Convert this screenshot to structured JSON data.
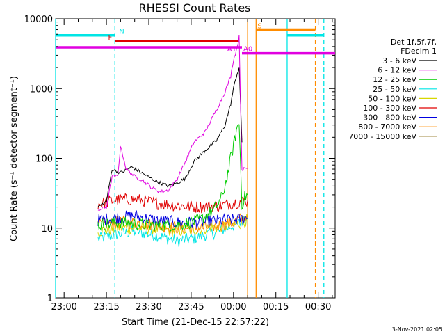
{
  "chart_data": {
    "type": "line",
    "title": "RHESSI Count Rates",
    "xlabel": "Start Time (21-Dec-15 22:57:22)",
    "ylabel": "Count Rate (s⁻¹ detector segment⁻¹)",
    "y_scale": "log",
    "ylim": [
      1,
      10000
    ],
    "xlim": [
      "22:57",
      "00:36"
    ],
    "x_tick_labels": [
      "23:00",
      "23:15",
      "23:30",
      "23:45",
      "00:00",
      "00:15",
      "00:30"
    ],
    "y_tick_labels": [
      "1",
      "10",
      "100",
      "1000",
      "10000"
    ],
    "legend_position": "right",
    "legend_header": [
      "Det 1f,5f,7f,",
      "FDecim 1"
    ],
    "timestamp": "3-Nov-2021 02:05",
    "series": [
      {
        "name": "3 - 6 keV",
        "color": "#000000",
        "x": [
          "23:12",
          "23:15",
          "23:17",
          "23:20",
          "23:24",
          "23:28",
          "23:33",
          "23:37",
          "23:40",
          "23:43",
          "23:46",
          "23:50",
          "23:54",
          "23:57",
          "23:59",
          "00:00",
          "00:01",
          "00:02",
          "00:03"
        ],
        "y": [
          20,
          24,
          70,
          62,
          75,
          60,
          46,
          40,
          44,
          52,
          90,
          130,
          180,
          300,
          600,
          1000,
          1500,
          2000,
          170
        ]
      },
      {
        "name": "6 - 12 keV",
        "color": "#e000e0",
        "x": [
          "23:12",
          "23:15",
          "23:17",
          "23:19",
          "23:20",
          "23:22",
          "23:25",
          "23:28",
          "23:31",
          "23:34",
          "23:37",
          "23:40",
          "23:43",
          "23:46",
          "23:50",
          "23:54",
          "23:57",
          "23:59",
          "00:00",
          "00:01",
          "00:02",
          "00:03",
          "00:04",
          "00:05"
        ],
        "y": [
          18,
          20,
          55,
          55,
          150,
          70,
          55,
          48,
          38,
          33,
          35,
          50,
          90,
          170,
          240,
          500,
          900,
          1500,
          2600,
          3500,
          5500,
          70,
          70,
          72
        ]
      },
      {
        "name": "12 - 25 keV",
        "color": "#00cc00",
        "x": [
          "23:12",
          "23:20",
          "23:30",
          "23:40",
          "23:48",
          "23:53",
          "23:56",
          "23:58",
          "23:59",
          "00:00",
          "00:01",
          "00:02",
          "00:03",
          "00:04",
          "00:05"
        ],
        "y": [
          11,
          12,
          11,
          11,
          13,
          18,
          28,
          60,
          100,
          150,
          250,
          320,
          22,
          28,
          30
        ]
      },
      {
        "name": "25 - 50 keV",
        "color": "#00e5e5",
        "x": [
          "23:12",
          "23:18",
          "23:25",
          "23:32",
          "23:40",
          "23:48",
          "23:55",
          "00:00",
          "00:03",
          "00:05"
        ],
        "y": [
          7,
          8,
          9,
          8,
          6.5,
          7.5,
          9,
          11,
          12,
          14
        ]
      },
      {
        "name": "50 - 100 keV",
        "color": "#d7d700",
        "x": [
          "23:12",
          "23:20",
          "23:30",
          "23:40",
          "23:50",
          "00:00",
          "00:05"
        ],
        "y": [
          9,
          10,
          10,
          9,
          10,
          11,
          13
        ]
      },
      {
        "name": "100 - 300 keV",
        "color": "#e00000",
        "x": [
          "23:12",
          "23:18",
          "23:25",
          "23:32",
          "23:40",
          "23:48",
          "23:56",
          "00:00",
          "00:05"
        ],
        "y": [
          22,
          25,
          26,
          23,
          21,
          20,
          21,
          23,
          25
        ]
      },
      {
        "name": "300 - 800 keV",
        "color": "#0000e0",
        "x": [
          "23:12",
          "23:18",
          "23:25",
          "23:32",
          "23:40",
          "23:48",
          "23:56",
          "00:00",
          "00:05"
        ],
        "y": [
          13,
          14,
          15,
          13,
          12,
          12,
          13,
          13,
          14
        ]
      },
      {
        "name": "800 - 7000 keV",
        "color": "#ff8c00",
        "x": [
          "23:12",
          "23:18",
          "23:25",
          "23:32",
          "23:40",
          "23:48",
          "23:56",
          "00:00",
          "00:05"
        ],
        "y": [
          11,
          12,
          12,
          11,
          10,
          10,
          11,
          12,
          15
        ]
      },
      {
        "name": "7000 - 15000 keV",
        "color": "#806000",
        "x": [],
        "y": []
      }
    ],
    "flags": [
      {
        "label": "N",
        "color": "#00e5e5",
        "level": 5800,
        "intervals": [
          [
            "22:57",
            "23:18"
          ],
          [
            "00:19",
            "00:32"
          ]
        ]
      },
      {
        "label": "F",
        "color": "#e00000",
        "level": 4800,
        "intervals": [
          [
            "23:18",
            "00:02"
          ]
        ]
      },
      {
        "label": "",
        "color": "#e000e0",
        "level": 3900,
        "intervals": [
          [
            "22:57",
            "00:03"
          ]
        ]
      },
      {
        "label": "A0",
        "color": "#e000e0",
        "level": 3200,
        "intervals": [
          [
            "00:03",
            "00:36"
          ]
        ]
      },
      {
        "label": "A1",
        "color": "#e000e0",
        "level": 4200,
        "intervals": []
      },
      {
        "label": "S",
        "color": "#ff8c00",
        "level": 7000,
        "intervals": [
          [
            "00:08",
            "00:29"
          ]
        ]
      }
    ],
    "markers": [
      {
        "time": "22:57",
        "color": "#00e5e5",
        "style": "solid"
      },
      {
        "time": "23:18",
        "color": "#00e5e5",
        "style": "dashed"
      },
      {
        "time": "00:05",
        "color": "#ff8c00",
        "style": "solid"
      },
      {
        "time": "00:08",
        "color": "#ff8c00",
        "style": "solid"
      },
      {
        "time": "00:19",
        "color": "#00e5e5",
        "style": "solid"
      },
      {
        "time": "00:29",
        "color": "#ff8c00",
        "style": "dashed"
      },
      {
        "time": "00:32",
        "color": "#00e5e5",
        "style": "dashed"
      }
    ]
  }
}
